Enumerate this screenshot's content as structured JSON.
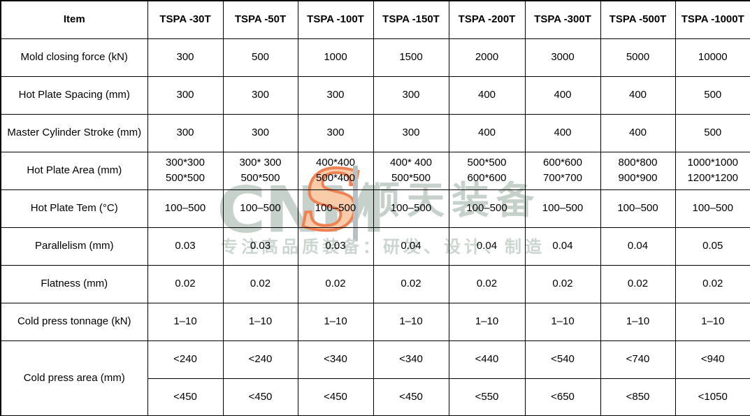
{
  "table": {
    "header": [
      "Item",
      "TSPA -30T",
      "TSPA -50T",
      "TSPA -100T",
      "TSPA -150T",
      "TSPA -200T",
      "TSPA -300T",
      "TSPA -500T",
      "TSPA -1000T"
    ],
    "rows": [
      {
        "label": "Mold closing force (kN)",
        "values": [
          "300",
          "500",
          "1000",
          "1500",
          "2000",
          "3000",
          "5000",
          "10000"
        ]
      },
      {
        "label": "Hot Plate Spacing (mm)",
        "values": [
          "300",
          "300",
          "300",
          "300",
          "400",
          "400",
          "400",
          "500"
        ]
      },
      {
        "label": "Master Cylinder Stroke (mm)",
        "values": [
          "300",
          "300",
          "300",
          "300",
          "400",
          "400",
          "400",
          "500"
        ]
      },
      {
        "label": "Hot Plate Area (mm)",
        "values": [
          "300*300\n500*500",
          "300* 300\n500*500",
          "400*400\n500*400",
          "400* 400\n500*500",
          "500*500\n600*600",
          "600*600\n700*700",
          "800*800\n900*900",
          "1000*1000\n1200*1200"
        ]
      },
      {
        "label": "Hot Plate Tem (°C)",
        "values": [
          "100–500",
          "100–500",
          "100–500",
          "100–500",
          "100–500",
          "100–500",
          "100–500",
          "100–500"
        ]
      },
      {
        "label": "Parallelism (mm)",
        "values": [
          "0.03",
          "0.03",
          "0.03",
          "0.04",
          "0.04",
          "0.04",
          "0.04",
          "0.05"
        ]
      },
      {
        "label": "Flatness (mm)",
        "values": [
          "0.02",
          "0.02",
          "0.02",
          "0.02",
          "0.02",
          "0.02",
          "0.02",
          "0.02"
        ]
      },
      {
        "label": "Cold press tonnage (kN)",
        "values": [
          "1–10",
          "1–10",
          "1–10",
          "1–10",
          "1–10",
          "1–10",
          "1–10",
          "1–10"
        ]
      },
      {
        "label": "Cold press area (mm)",
        "sub_rows": [
          [
            "<240",
            "<240",
            "<340",
            "<340",
            "<440",
            "<540",
            "<740",
            "<940"
          ],
          [
            "<450",
            "<450",
            "<450",
            "<450",
            "<550",
            "<650",
            "<850",
            "<1050"
          ]
        ]
      }
    ]
  },
  "watermark": {
    "logo_letters": "CNM",
    "logo_s": "S",
    "brand_cn": "顺天装备",
    "tagline": "专注高品质装备：研发、设计、制造",
    "colors": {
      "letters_gray_green": "#c6d1cb",
      "s_fill_orange": "#f8cba9",
      "s_outline_orange": "#ee8254",
      "divider_gray": "#b9c0c3"
    }
  }
}
